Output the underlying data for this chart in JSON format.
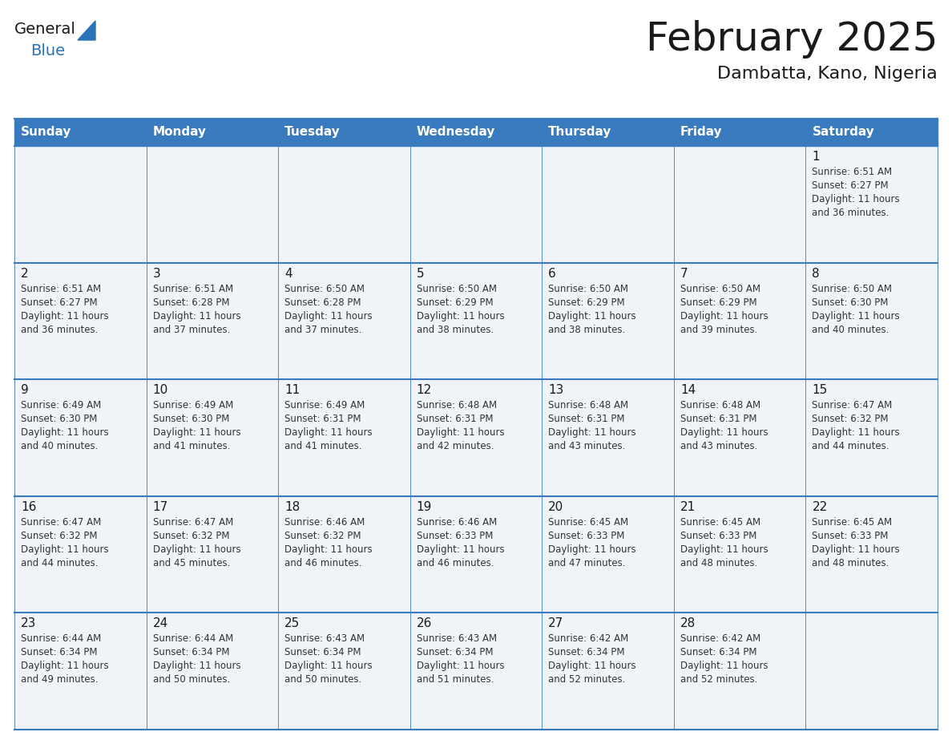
{
  "title": "February 2025",
  "subtitle": "Dambatta, Kano, Nigeria",
  "days_of_week": [
    "Sunday",
    "Monday",
    "Tuesday",
    "Wednesday",
    "Thursday",
    "Friday",
    "Saturday"
  ],
  "header_bg": "#3a7abf",
  "header_text": "#ffffff",
  "cell_bg": "#f0f4f8",
  "border_color": "#3a7abf",
  "row_separator_color": "#3a7abf",
  "title_color": "#1a1a1a",
  "subtitle_color": "#1a1a1a",
  "day_num_color": "#1a1a1a",
  "cell_text_color": "#333333",
  "logo_general_color": "#1a1a1a",
  "logo_blue_color": "#2a72b8",
  "calendar": [
    [
      null,
      null,
      null,
      null,
      null,
      null,
      {
        "day": 1,
        "sunrise": "6:51 AM",
        "sunset": "6:27 PM",
        "daylight": "11 hours and 36 minutes."
      }
    ],
    [
      {
        "day": 2,
        "sunrise": "6:51 AM",
        "sunset": "6:27 PM",
        "daylight": "11 hours and 36 minutes."
      },
      {
        "day": 3,
        "sunrise": "6:51 AM",
        "sunset": "6:28 PM",
        "daylight": "11 hours and 37 minutes."
      },
      {
        "day": 4,
        "sunrise": "6:50 AM",
        "sunset": "6:28 PM",
        "daylight": "11 hours and 37 minutes."
      },
      {
        "day": 5,
        "sunrise": "6:50 AM",
        "sunset": "6:29 PM",
        "daylight": "11 hours and 38 minutes."
      },
      {
        "day": 6,
        "sunrise": "6:50 AM",
        "sunset": "6:29 PM",
        "daylight": "11 hours and 38 minutes."
      },
      {
        "day": 7,
        "sunrise": "6:50 AM",
        "sunset": "6:29 PM",
        "daylight": "11 hours and 39 minutes."
      },
      {
        "day": 8,
        "sunrise": "6:50 AM",
        "sunset": "6:30 PM",
        "daylight": "11 hours and 40 minutes."
      }
    ],
    [
      {
        "day": 9,
        "sunrise": "6:49 AM",
        "sunset": "6:30 PM",
        "daylight": "11 hours and 40 minutes."
      },
      {
        "day": 10,
        "sunrise": "6:49 AM",
        "sunset": "6:30 PM",
        "daylight": "11 hours and 41 minutes."
      },
      {
        "day": 11,
        "sunrise": "6:49 AM",
        "sunset": "6:31 PM",
        "daylight": "11 hours and 41 minutes."
      },
      {
        "day": 12,
        "sunrise": "6:48 AM",
        "sunset": "6:31 PM",
        "daylight": "11 hours and 42 minutes."
      },
      {
        "day": 13,
        "sunrise": "6:48 AM",
        "sunset": "6:31 PM",
        "daylight": "11 hours and 43 minutes."
      },
      {
        "day": 14,
        "sunrise": "6:48 AM",
        "sunset": "6:31 PM",
        "daylight": "11 hours and 43 minutes."
      },
      {
        "day": 15,
        "sunrise": "6:47 AM",
        "sunset": "6:32 PM",
        "daylight": "11 hours and 44 minutes."
      }
    ],
    [
      {
        "day": 16,
        "sunrise": "6:47 AM",
        "sunset": "6:32 PM",
        "daylight": "11 hours and 44 minutes."
      },
      {
        "day": 17,
        "sunrise": "6:47 AM",
        "sunset": "6:32 PM",
        "daylight": "11 hours and 45 minutes."
      },
      {
        "day": 18,
        "sunrise": "6:46 AM",
        "sunset": "6:32 PM",
        "daylight": "11 hours and 46 minutes."
      },
      {
        "day": 19,
        "sunrise": "6:46 AM",
        "sunset": "6:33 PM",
        "daylight": "11 hours and 46 minutes."
      },
      {
        "day": 20,
        "sunrise": "6:45 AM",
        "sunset": "6:33 PM",
        "daylight": "11 hours and 47 minutes."
      },
      {
        "day": 21,
        "sunrise": "6:45 AM",
        "sunset": "6:33 PM",
        "daylight": "11 hours and 48 minutes."
      },
      {
        "day": 22,
        "sunrise": "6:45 AM",
        "sunset": "6:33 PM",
        "daylight": "11 hours and 48 minutes."
      }
    ],
    [
      {
        "day": 23,
        "sunrise": "6:44 AM",
        "sunset": "6:34 PM",
        "daylight": "11 hours and 49 minutes."
      },
      {
        "day": 24,
        "sunrise": "6:44 AM",
        "sunset": "6:34 PM",
        "daylight": "11 hours and 50 minutes."
      },
      {
        "day": 25,
        "sunrise": "6:43 AM",
        "sunset": "6:34 PM",
        "daylight": "11 hours and 50 minutes."
      },
      {
        "day": 26,
        "sunrise": "6:43 AM",
        "sunset": "6:34 PM",
        "daylight": "11 hours and 51 minutes."
      },
      {
        "day": 27,
        "sunrise": "6:42 AM",
        "sunset": "6:34 PM",
        "daylight": "11 hours and 52 minutes."
      },
      {
        "day": 28,
        "sunrise": "6:42 AM",
        "sunset": "6:34 PM",
        "daylight": "11 hours and 52 minutes."
      },
      null
    ]
  ]
}
